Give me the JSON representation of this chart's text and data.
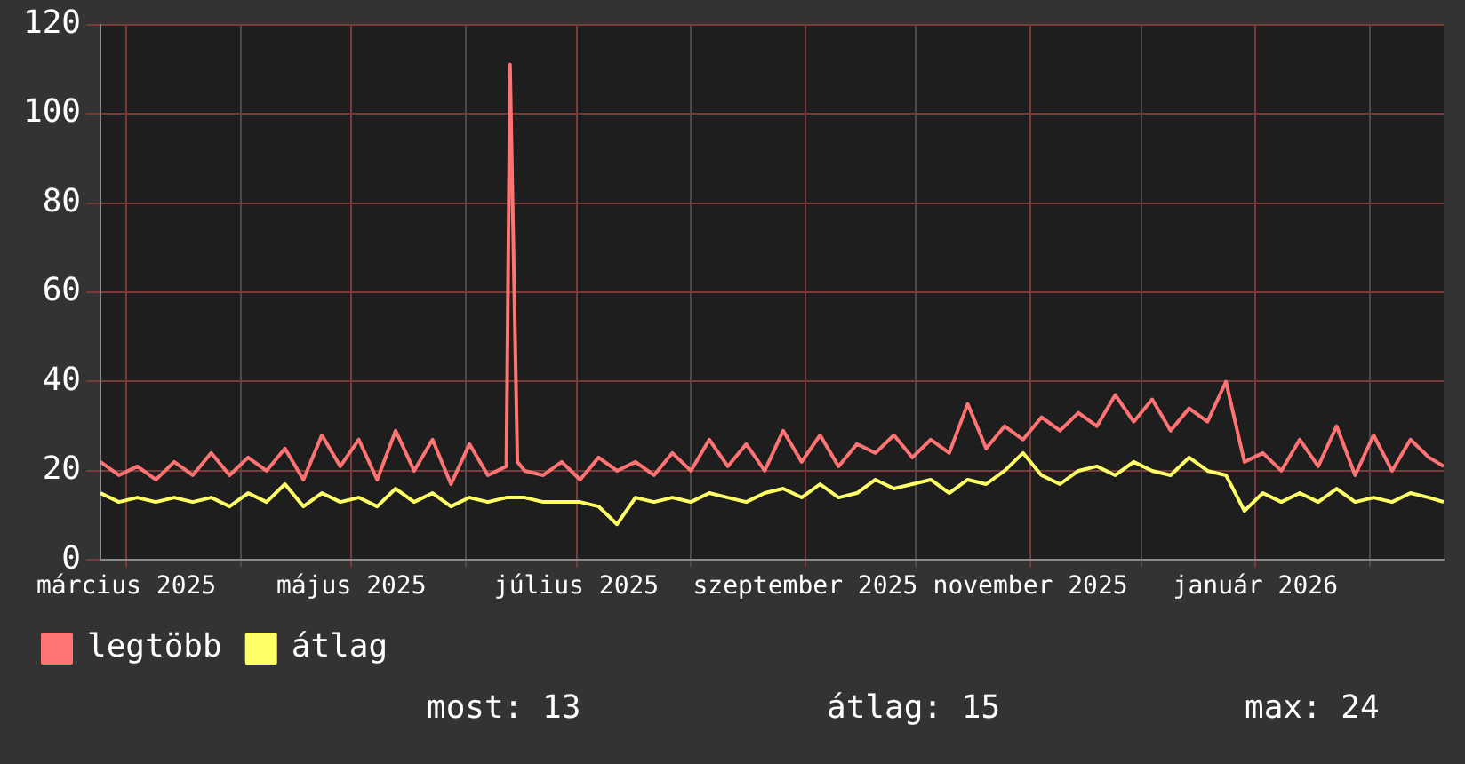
{
  "chart_data": {
    "type": "line",
    "x": [
      "2025-02-22",
      "2025-02-27",
      "2025-03-04",
      "2025-03-09",
      "2025-03-14",
      "2025-03-19",
      "2025-03-24",
      "2025-03-29",
      "2025-04-03",
      "2025-04-08",
      "2025-04-13",
      "2025-04-18",
      "2025-04-23",
      "2025-04-28",
      "2025-05-03",
      "2025-05-08",
      "2025-05-13",
      "2025-05-18",
      "2025-05-23",
      "2025-05-28",
      "2025-06-02",
      "2025-06-07",
      "2025-06-12",
      "2025-06-13",
      "2025-06-15",
      "2025-06-17",
      "2025-06-22",
      "2025-06-27",
      "2025-07-02",
      "2025-07-07",
      "2025-07-12",
      "2025-07-17",
      "2025-07-22",
      "2025-07-27",
      "2025-08-01",
      "2025-08-06",
      "2025-08-11",
      "2025-08-16",
      "2025-08-21",
      "2025-08-26",
      "2025-08-31",
      "2025-09-05",
      "2025-09-10",
      "2025-09-15",
      "2025-09-20",
      "2025-09-25",
      "2025-09-30",
      "2025-10-05",
      "2025-10-10",
      "2025-10-15",
      "2025-10-20",
      "2025-10-25",
      "2025-10-30",
      "2025-11-04",
      "2025-11-09",
      "2025-11-14",
      "2025-11-19",
      "2025-11-24",
      "2025-11-29",
      "2025-12-04",
      "2025-12-09",
      "2025-12-14",
      "2025-12-19",
      "2025-12-24",
      "2025-12-29",
      "2026-01-03",
      "2026-01-08",
      "2026-01-13",
      "2026-01-18",
      "2026-01-23",
      "2026-01-28",
      "2026-02-02",
      "2026-02-07",
      "2026-02-12",
      "2026-02-17",
      "2026-02-21"
    ],
    "series": [
      {
        "name": "legtöbb",
        "color": "#ff7373",
        "values": [
          22,
          19,
          21,
          18,
          22,
          19,
          24,
          19,
          23,
          20,
          25,
          18,
          28,
          21,
          27,
          18,
          29,
          20,
          27,
          17,
          26,
          19,
          21,
          111,
          22,
          20,
          19,
          22,
          18,
          23,
          20,
          22,
          19,
          24,
          20,
          27,
          21,
          26,
          20,
          29,
          22,
          28,
          21,
          26,
          24,
          28,
          23,
          27,
          24,
          35,
          25,
          30,
          27,
          32,
          29,
          33,
          30,
          37,
          31,
          36,
          29,
          34,
          31,
          40,
          22,
          24,
          20,
          27,
          21,
          30,
          19,
          28,
          20,
          27,
          23,
          21
        ]
      },
      {
        "name": "átlag",
        "color": "#ffff66",
        "values": [
          15,
          13,
          14,
          13,
          14,
          13,
          14,
          12,
          15,
          13,
          17,
          12,
          15,
          13,
          14,
          12,
          16,
          13,
          15,
          12,
          14,
          13,
          14,
          14,
          14,
          14,
          13,
          13,
          13,
          12,
          8,
          14,
          13,
          14,
          13,
          15,
          14,
          13,
          15,
          16,
          14,
          17,
          14,
          15,
          18,
          16,
          17,
          18,
          15,
          18,
          17,
          20,
          24,
          19,
          17,
          20,
          21,
          19,
          22,
          20,
          19,
          23,
          20,
          19,
          11,
          15,
          13,
          15,
          13,
          16,
          13,
          14,
          13,
          15,
          14,
          13
        ]
      }
    ],
    "xlim": [
      "2025-02-22",
      "2026-02-21"
    ],
    "xticks": [
      {
        "value": "2025-03-01",
        "label": "március 2025"
      },
      {
        "value": "2025-04-01",
        "label": null
      },
      {
        "value": "2025-05-01",
        "label": "május 2025"
      },
      {
        "value": "2025-06-01",
        "label": null
      },
      {
        "value": "2025-07-01",
        "label": "július 2025"
      },
      {
        "value": "2025-08-01",
        "label": null
      },
      {
        "value": "2025-09-01",
        "label": "szeptember 2025"
      },
      {
        "value": "2025-10-01",
        "label": null
      },
      {
        "value": "2025-11-01",
        "label": "november 2025"
      },
      {
        "value": "2025-12-01",
        "label": null
      },
      {
        "value": "2026-01-01",
        "label": "január 2026"
      },
      {
        "value": "2026-02-01",
        "label": null
      }
    ],
    "ylim": [
      0,
      120
    ],
    "yticks": [
      0,
      20,
      40,
      60,
      80,
      100,
      120
    ],
    "grid": true,
    "legend": "bottom left",
    "marker": "none",
    "line_style": "solid",
    "annotations": [
      "most: 13",
      "átlag: 15",
      "max: 24"
    ]
  }
}
